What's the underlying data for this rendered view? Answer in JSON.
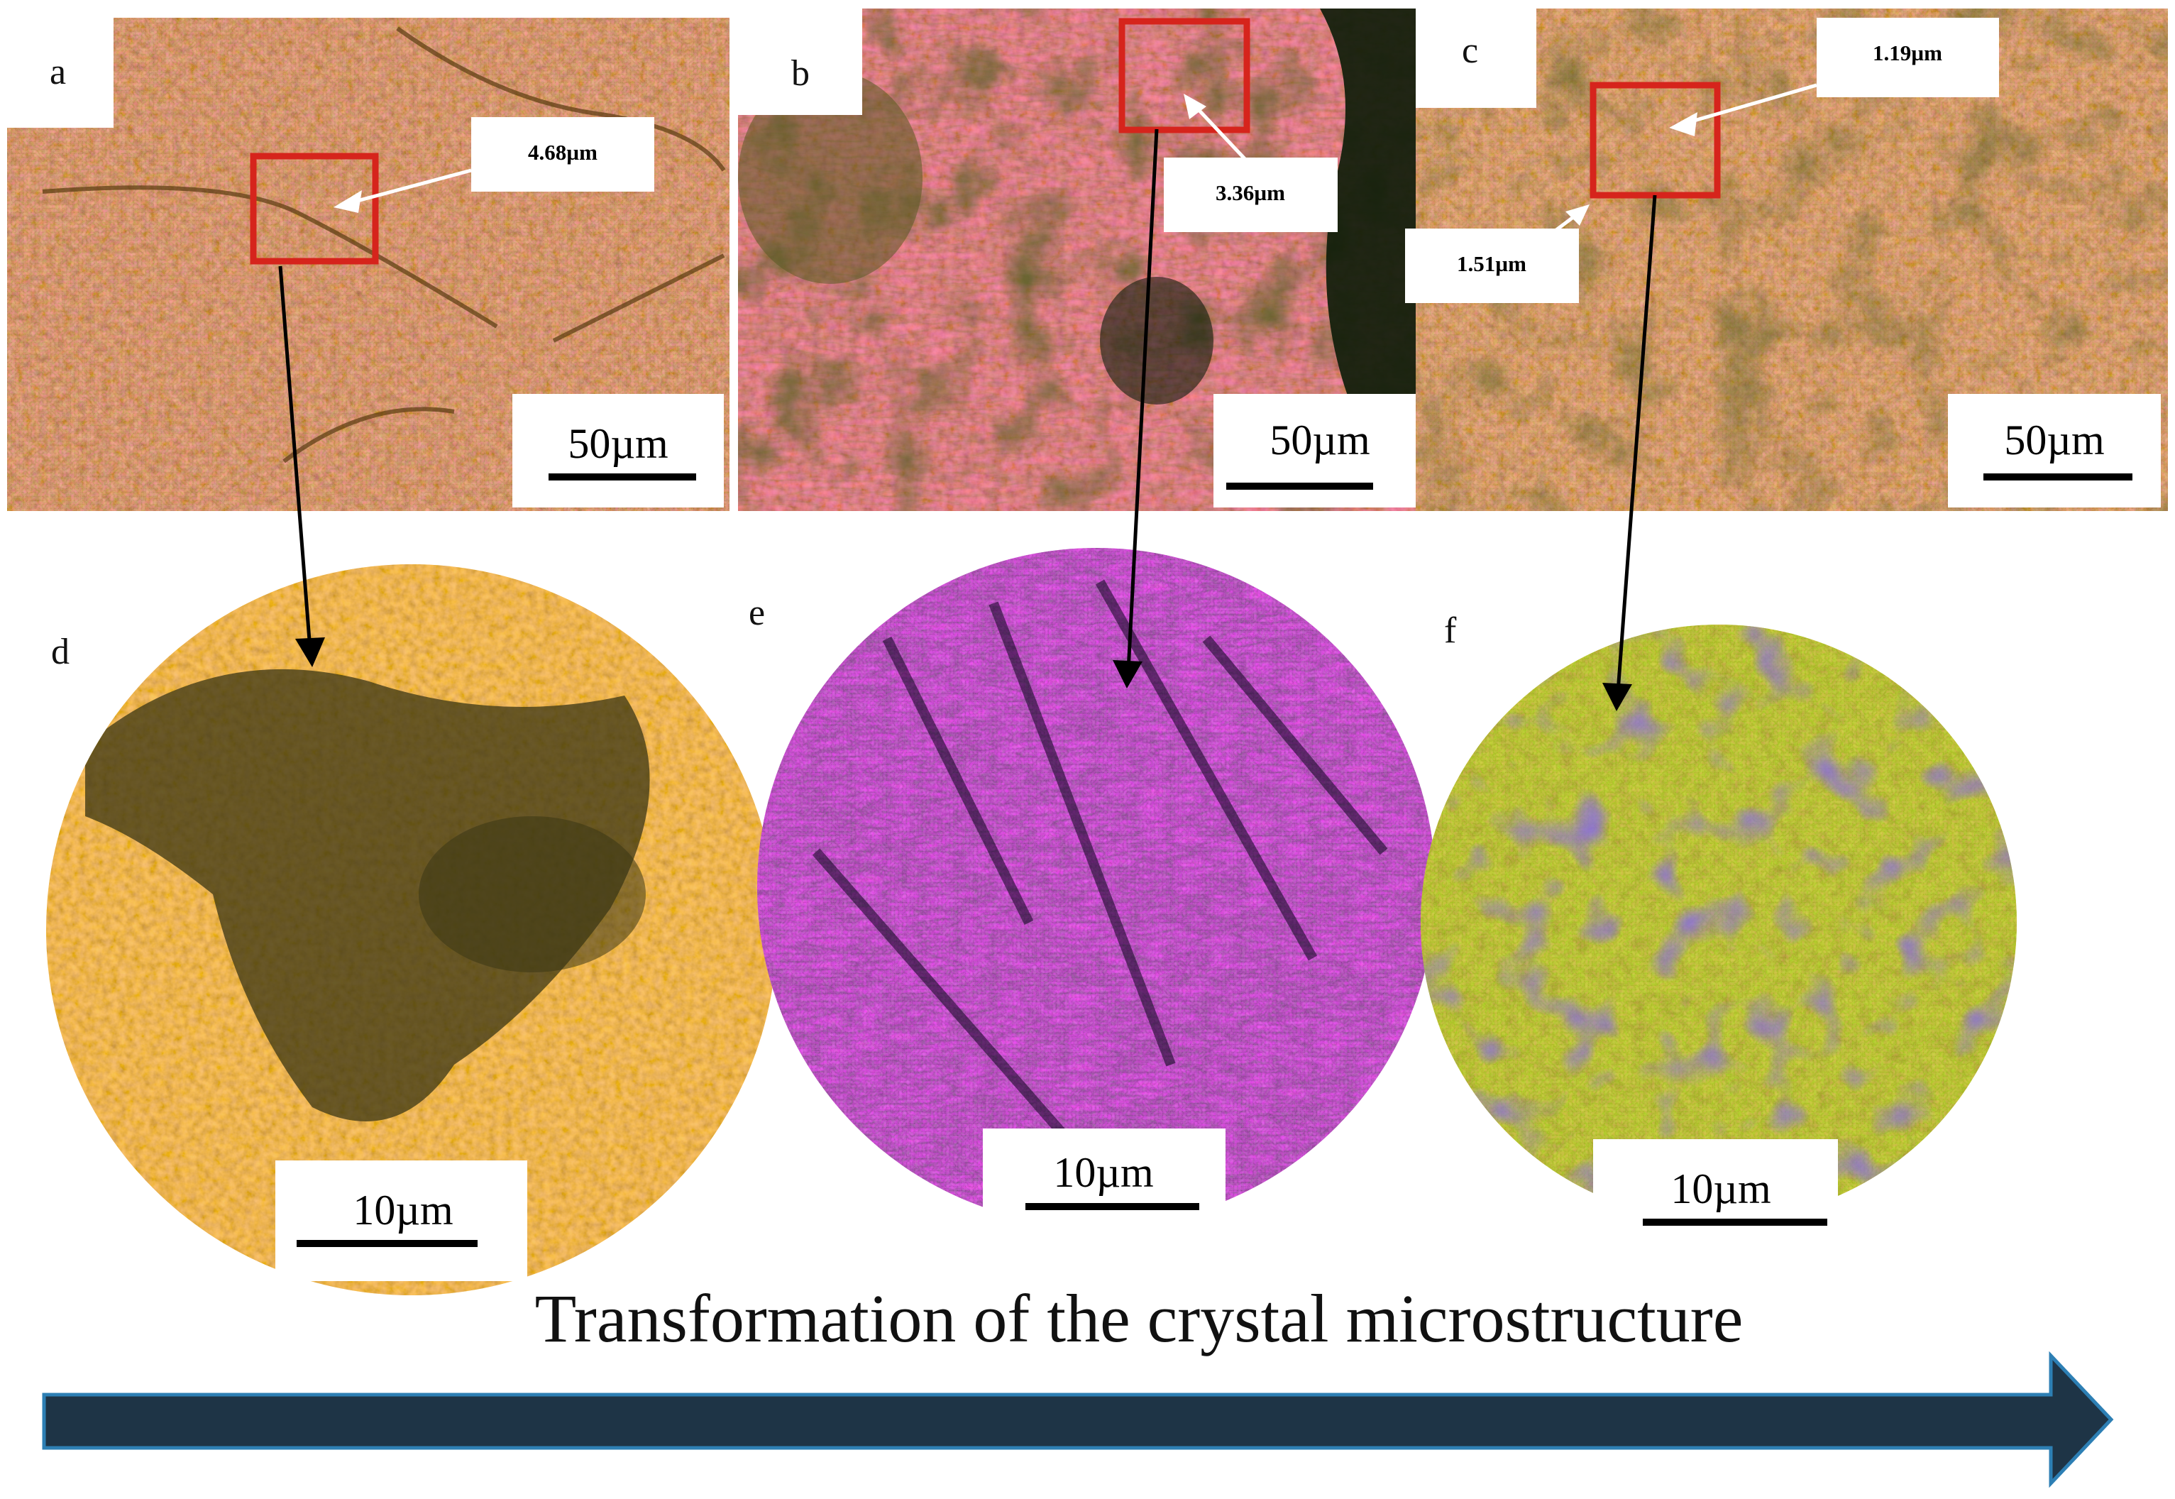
{
  "panels": {
    "a": {
      "letter": "a",
      "measurement": "4.68µm",
      "scale": "50µm"
    },
    "b": {
      "letter": "b",
      "measurement": "3.36µm",
      "scale": "50µm"
    },
    "c": {
      "letter": "c",
      "measurements": [
        "1.19µm",
        "1.51µm"
      ],
      "scale": "50µm"
    },
    "d": {
      "letter": "d",
      "scale": "10µm"
    },
    "e": {
      "letter": "e",
      "scale": "10µm"
    },
    "f": {
      "letter": "f",
      "scale": "10µm"
    }
  },
  "caption": "Transformation of the crystal microstructure",
  "colors": {
    "highlight_box": "#d6241c",
    "arrow": "#000000",
    "bottom_arrow_fill": "#1e3446",
    "bottom_arrow_outline": "#2d7fb4"
  }
}
